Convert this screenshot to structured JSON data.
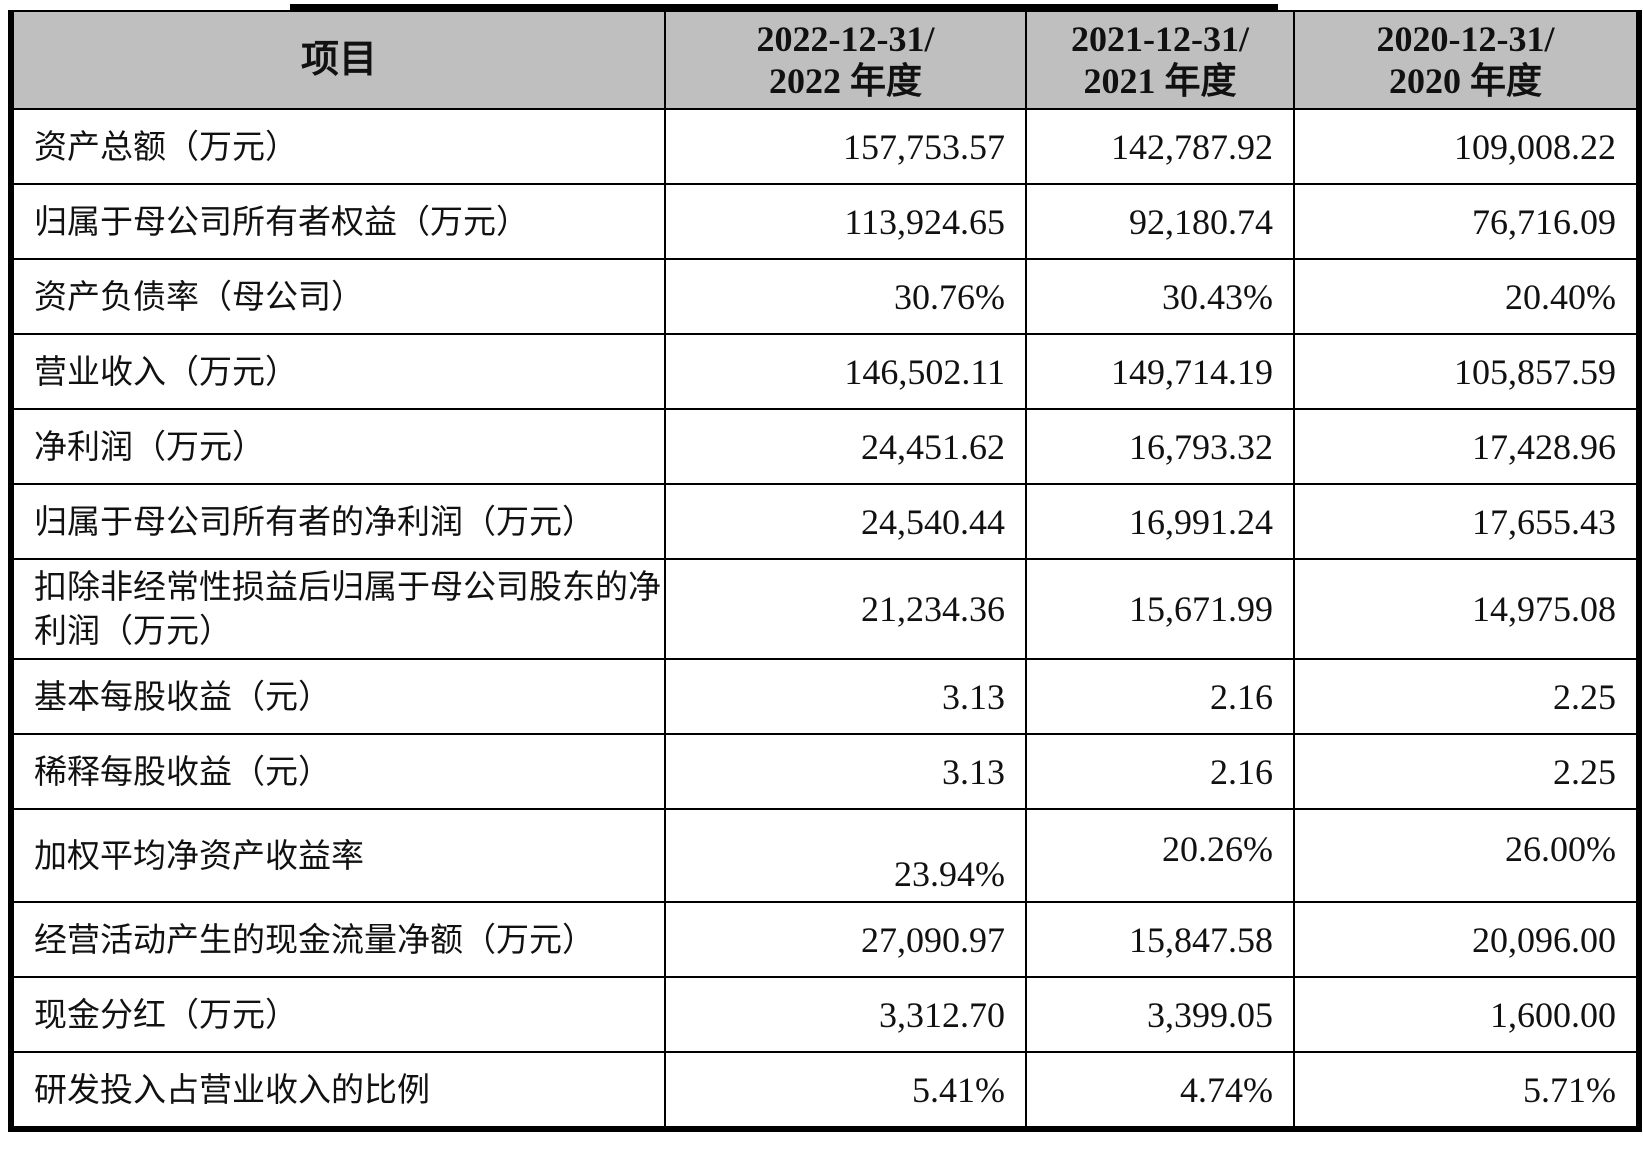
{
  "table": {
    "headers": {
      "item": "项目",
      "col1_line1": "2022-12-31/",
      "col1_line2": "2022 年度",
      "col2_line1": "2021-12-31/",
      "col2_line2": "2021 年度",
      "col3_line1": "2020-12-31/",
      "col3_line2": "2020 年度"
    },
    "rows": [
      {
        "label": "资产总额（万元）",
        "v2022": "157,753.57",
        "v2021": "142,787.92",
        "v2020": "109,008.22"
      },
      {
        "label": "归属于母公司所有者权益（万元）",
        "v2022": "113,924.65",
        "v2021": "92,180.74",
        "v2020": "76,716.09"
      },
      {
        "label": "资产负债率（母公司）",
        "v2022": "30.76%",
        "v2021": "30.43%",
        "v2020": "20.40%"
      },
      {
        "label": "营业收入（万元）",
        "v2022": "146,502.11",
        "v2021": "149,714.19",
        "v2020": "105,857.59"
      },
      {
        "label": "净利润（万元）",
        "v2022": "24,451.62",
        "v2021": "16,793.32",
        "v2020": "17,428.96"
      },
      {
        "label": "归属于母公司所有者的净利润（万元）",
        "v2022": "24,540.44",
        "v2021": "16,991.24",
        "v2020": "17,655.43"
      },
      {
        "label": "扣除非经常性损益后归属于母公司股东的净利润（万元）",
        "v2022": "21,234.36",
        "v2021": "15,671.99",
        "v2020": "14,975.08"
      },
      {
        "label": "基本每股收益（元）",
        "v2022": "3.13",
        "v2021": "2.16",
        "v2020": "2.25"
      },
      {
        "label": "稀释每股收益（元）",
        "v2022": "3.13",
        "v2021": "2.16",
        "v2020": "2.25"
      },
      {
        "label": "加权平均净资产收益率",
        "v2022": "23.94%",
        "v2021": "20.26%",
        "v2020": "26.00%"
      },
      {
        "label": "经营活动产生的现金流量净额（万元）",
        "v2022": "27,090.97",
        "v2021": "15,847.58",
        "v2020": "20,096.00"
      },
      {
        "label": "现金分红（万元）",
        "v2022": "3,312.70",
        "v2021": "3,399.05",
        "v2020": "1,600.00"
      },
      {
        "label": "研发投入占营业收入的比例",
        "v2022": "5.41%",
        "v2021": "4.74%",
        "v2020": "5.71%"
      }
    ]
  }
}
